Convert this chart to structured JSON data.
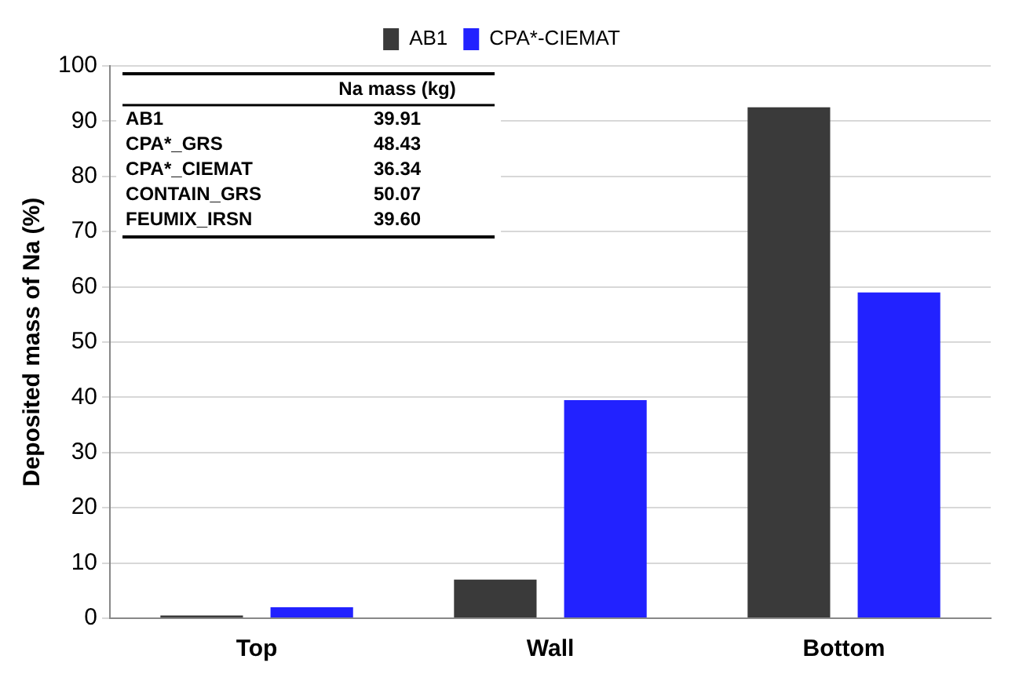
{
  "chart_data": {
    "type": "bar",
    "ylabel": "Deposited mass of Na (%)",
    "categories": [
      "Top",
      "Wall",
      "Bottom"
    ],
    "series": [
      {
        "name": "AB1",
        "color": "#3a3a3a",
        "values": [
          0.5,
          7,
          92.5
        ]
      },
      {
        "name": "CPA*-CIEMAT",
        "color": "#2222ff",
        "values": [
          2,
          39.5,
          59
        ]
      }
    ],
    "ylim": [
      0,
      100
    ],
    "yticks": [
      0,
      10,
      20,
      30,
      40,
      50,
      60,
      70,
      80,
      90,
      100
    ],
    "grid": "y",
    "legend": "top",
    "annotations": [
      "Na mass (kg)",
      "AB1",
      "39.91",
      "CPA*_GRS",
      "48.43",
      "CPA*_CIEMAT",
      "36.34",
      "CONTAIN_GRS",
      "50.07",
      "FEUMIX_IRSN",
      "39.60"
    ]
  }
}
